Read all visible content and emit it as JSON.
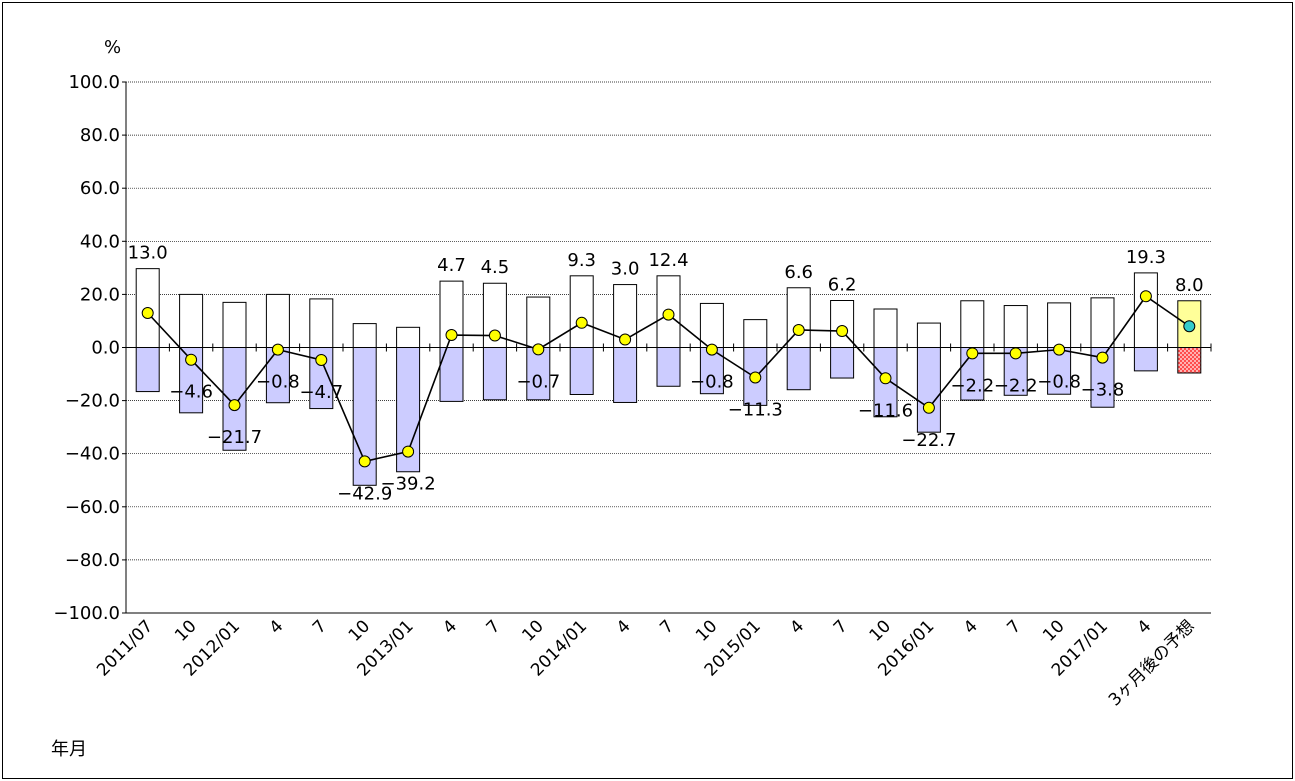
{
  "chart_data": {
    "type": "bar",
    "ylabel": "%",
    "xlabel": "年月",
    "ylim": [
      -100,
      100
    ],
    "yticks": [
      100,
      80,
      60,
      40,
      20,
      0,
      -20,
      -40,
      -60,
      -80,
      -100
    ],
    "ytick_labels": [
      "100.0",
      "80.0",
      "60.0",
      "40.0",
      "20.0",
      "0.0",
      "−20.0",
      "−40.0",
      "−60.0",
      "−80.0",
      "−100.0"
    ],
    "grid": true,
    "categories": [
      "2011/07",
      "10",
      "2012/01",
      "4",
      "7",
      "10",
      "2013/01",
      "4",
      "7",
      "10",
      "2014/01",
      "4",
      "7",
      "10",
      "2015/01",
      "4",
      "7",
      "10",
      "2016/01",
      "4",
      "7",
      "10",
      "2017/01",
      "4",
      "3ヶ月後の予想"
    ],
    "series": [
      {
        "values": [
          29.7,
          20.0,
          17.0,
          20.0,
          18.3,
          9.0,
          7.6,
          25.0,
          24.2,
          19.0,
          27.0,
          23.7,
          27.0,
          16.6,
          10.5,
          22.5,
          17.7,
          14.5,
          9.2,
          17.6,
          15.8,
          16.8,
          18.7,
          28.1,
          17.6
        ]
      },
      {
        "values": [
          -16.6,
          -24.6,
          -38.7,
          -20.8,
          -23.0,
          -51.9,
          -46.8,
          -20.3,
          -19.7,
          -19.7,
          -17.7,
          -20.7,
          -14.6,
          -17.4,
          -21.8,
          -15.9,
          -11.5,
          -26.1,
          -31.9,
          -19.8,
          -18.0,
          -17.6,
          -22.5,
          -8.8,
          -9.6
        ]
      },
      {
        "values": [
          13.0,
          -4.6,
          -21.7,
          -0.8,
          -4.7,
          -42.9,
          -39.2,
          4.7,
          4.5,
          -0.7,
          9.3,
          3.0,
          12.4,
          -0.8,
          -11.3,
          6.6,
          6.2,
          -11.6,
          -22.7,
          -2.2,
          -2.2,
          -0.8,
          -3.8,
          19.3,
          8.0
        ]
      }
    ],
    "data_labels": [
      "13.0",
      "−4.6",
      "−21.7",
      "−0.8",
      "−4.7",
      "−42.9",
      "−39.2",
      "4.7",
      "4.5",
      "−0.7",
      "9.3",
      "3.0",
      "12.4",
      "−0.8",
      "−11.3",
      "6.6",
      "6.2",
      "−11.6",
      "−22.7",
      "−2.2",
      "−2.2",
      "−0.8",
      "−3.8",
      "19.3",
      "8.0"
    ],
    "colors": {
      "positive_bar_fill": "#ffffff",
      "negative_bar_fill": "#ccccff",
      "forecast_positive_fill": "#ffff99",
      "forecast_negative_fill": "#ff9999",
      "line": "#000000",
      "marker": "#ffff00",
      "forecast_marker": "#33cccc"
    }
  }
}
